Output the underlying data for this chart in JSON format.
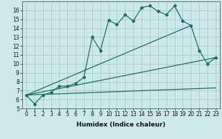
{
  "xlabel": "Humidex (Indice chaleur)",
  "bg_color": "#cce8e8",
  "grid_color": "#aacfcf",
  "line_color": "#1a6b6b",
  "xlim": [
    -0.5,
    23.5
  ],
  "ylim": [
    5,
    17
  ],
  "xticks": [
    0,
    1,
    2,
    3,
    4,
    5,
    6,
    7,
    8,
    9,
    10,
    11,
    12,
    13,
    14,
    15,
    16,
    17,
    18,
    19,
    20,
    21,
    22,
    23
  ],
  "yticks": [
    5,
    6,
    7,
    8,
    9,
    10,
    11,
    12,
    13,
    14,
    15,
    16
  ],
  "series1_x": [
    0,
    1,
    2,
    3,
    4,
    5,
    6,
    7,
    8,
    9,
    10,
    11,
    12,
    13,
    14,
    15,
    16,
    17,
    18,
    19,
    20,
    21,
    22,
    23
  ],
  "series1_y": [
    6.5,
    5.5,
    6.5,
    6.8,
    7.5,
    7.5,
    7.8,
    8.5,
    13.0,
    11.5,
    14.9,
    14.4,
    15.5,
    14.8,
    16.3,
    16.5,
    15.9,
    15.5,
    16.5,
    14.8,
    14.3,
    11.5,
    10.0,
    10.7
  ],
  "series2_x": [
    0,
    20
  ],
  "series2_y": [
    6.5,
    14.3
  ],
  "series3_x": [
    0,
    23
  ],
  "series3_y": [
    6.5,
    10.7
  ],
  "series4_x": [
    0,
    23
  ],
  "series4_y": [
    6.5,
    7.3
  ],
  "tick_fontsize": 5.5,
  "xlabel_fontsize": 6.5
}
